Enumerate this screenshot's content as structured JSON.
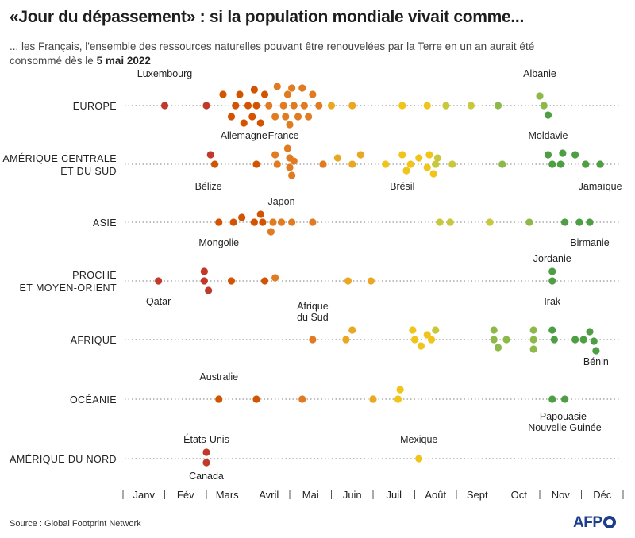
{
  "title": "«Jour du dépassement» : si la population mondiale vivait comme...",
  "subtitle_pre": "... les Français, l'ensemble des ressources naturelles pouvant être renouvelées par la Terre en un an aurait été consommé dès le ",
  "subtitle_date": "5 mai 2022",
  "source": "Source : Global Footprint Network",
  "logo_text": "AFP",
  "colors": {
    "scale": [
      "#c0392b",
      "#d35400",
      "#e07b22",
      "#eaa722",
      "#f0c419",
      "#c8c83a",
      "#8db94a",
      "#4e9e44"
    ],
    "dotline": "#999999",
    "label": "#222222"
  },
  "chart_data": {
    "type": "scatter",
    "x_axis": {
      "unit": "month",
      "range": [
        1,
        13
      ],
      "tick_labels": [
        "Janv",
        "Fév",
        "Mars",
        "Avril",
        "Mai",
        "Juin",
        "Juil",
        "Août",
        "Sept",
        "Oct",
        "Nov",
        "Déc"
      ]
    },
    "groups": [
      {
        "label_lines": [
          "EUROPE"
        ],
        "points": [
          {
            "x": 2.0,
            "dy": 0
          },
          {
            "x": 3.0,
            "dy": 0
          },
          {
            "x": 3.4,
            "dy": -14
          },
          {
            "x": 3.6,
            "dy": 14
          },
          {
            "x": 3.7,
            "dy": 0
          },
          {
            "x": 3.8,
            "dy": -14
          },
          {
            "x": 3.9,
            "dy": 22
          },
          {
            "x": 4.0,
            "dy": 0
          },
          {
            "x": 4.1,
            "dy": 14
          },
          {
            "x": 4.15,
            "dy": -20
          },
          {
            "x": 4.2,
            "dy": 0
          },
          {
            "x": 4.3,
            "dy": 22
          },
          {
            "x": 4.4,
            "dy": -14
          },
          {
            "x": 4.5,
            "dy": 0
          },
          {
            "x": 4.65,
            "dy": 14
          },
          {
            "x": 4.7,
            "dy": -24
          },
          {
            "x": 4.85,
            "dy": 0
          },
          {
            "x": 4.9,
            "dy": 14
          },
          {
            "x": 4.95,
            "dy": -14
          },
          {
            "x": 5.0,
            "dy": 24
          },
          {
            "x": 5.05,
            "dy": -22
          },
          {
            "x": 5.1,
            "dy": 0
          },
          {
            "x": 5.2,
            "dy": 14
          },
          {
            "x": 5.3,
            "dy": -22
          },
          {
            "x": 5.35,
            "dy": 0
          },
          {
            "x": 5.45,
            "dy": 14
          },
          {
            "x": 5.55,
            "dy": -14
          },
          {
            "x": 5.7,
            "dy": 0
          },
          {
            "x": 6.0,
            "dy": 0
          },
          {
            "x": 6.5,
            "dy": 0
          },
          {
            "x": 7.7,
            "dy": 0
          },
          {
            "x": 8.3,
            "dy": 0
          },
          {
            "x": 8.75,
            "dy": 0
          },
          {
            "x": 9.35,
            "dy": 0
          },
          {
            "x": 10.0,
            "dy": 0
          },
          {
            "x": 11.0,
            "dy": -12
          },
          {
            "x": 11.1,
            "dy": 0
          },
          {
            "x": 11.2,
            "dy": 12
          }
        ],
        "annotations": [
          {
            "text": "Luxembourg",
            "x": 2.0,
            "pos": "above"
          },
          {
            "text": "Allemagne",
            "x": 3.9,
            "pos": "below"
          },
          {
            "text": "France",
            "x": 4.85,
            "pos": "below"
          },
          {
            "text": "Albanie",
            "x": 11.0,
            "pos": "above"
          },
          {
            "text": "Moldavie",
            "x": 11.2,
            "pos": "below"
          }
        ]
      },
      {
        "label_lines": [
          "AMÉRIQUE CENTRALE",
          "ET DU SUD"
        ],
        "points": [
          {
            "x": 3.1,
            "dy": -12
          },
          {
            "x": 3.2,
            "dy": 0
          },
          {
            "x": 4.2,
            "dy": 0
          },
          {
            "x": 4.65,
            "dy": -12
          },
          {
            "x": 4.7,
            "dy": 0
          },
          {
            "x": 4.95,
            "dy": -20
          },
          {
            "x": 5.0,
            "dy": -8
          },
          {
            "x": 5.0,
            "dy": 4
          },
          {
            "x": 5.05,
            "dy": 14
          },
          {
            "x": 5.1,
            "dy": -4
          },
          {
            "x": 5.8,
            "dy": 0
          },
          {
            "x": 6.15,
            "dy": -8
          },
          {
            "x": 6.5,
            "dy": 0
          },
          {
            "x": 6.7,
            "dy": -12
          },
          {
            "x": 7.3,
            "dy": 0
          },
          {
            "x": 7.7,
            "dy": -12
          },
          {
            "x": 7.8,
            "dy": 8
          },
          {
            "x": 7.9,
            "dy": 0
          },
          {
            "x": 8.1,
            "dy": -8
          },
          {
            "x": 8.3,
            "dy": 4
          },
          {
            "x": 8.35,
            "dy": -12
          },
          {
            "x": 8.45,
            "dy": 12
          },
          {
            "x": 8.5,
            "dy": 0
          },
          {
            "x": 8.55,
            "dy": -8
          },
          {
            "x": 8.9,
            "dy": 0
          },
          {
            "x": 10.1,
            "dy": 0
          },
          {
            "x": 11.2,
            "dy": -12
          },
          {
            "x": 11.3,
            "dy": 0
          },
          {
            "x": 11.5,
            "dy": 0
          },
          {
            "x": 11.55,
            "dy": -14
          },
          {
            "x": 11.85,
            "dy": -12
          },
          {
            "x": 12.1,
            "dy": 0
          },
          {
            "x": 12.45,
            "dy": 0
          }
        ],
        "annotations": [
          {
            "text": "Bélize",
            "x": 3.05,
            "pos": "below"
          },
          {
            "text": "Brésil",
            "x": 7.7,
            "pos": "below"
          },
          {
            "text": "Jamaïque",
            "x": 12.45,
            "pos": "below"
          }
        ]
      },
      {
        "label_lines": [
          "ASIE"
        ],
        "points": [
          {
            "x": 3.3,
            "dy": 0
          },
          {
            "x": 3.65,
            "dy": 0
          },
          {
            "x": 3.85,
            "dy": -6
          },
          {
            "x": 4.15,
            "dy": 0
          },
          {
            "x": 4.3,
            "dy": -10
          },
          {
            "x": 4.35,
            "dy": 0
          },
          {
            "x": 4.55,
            "dy": 12
          },
          {
            "x": 4.6,
            "dy": 0
          },
          {
            "x": 4.8,
            "dy": 0
          },
          {
            "x": 5.05,
            "dy": 0
          },
          {
            "x": 5.55,
            "dy": 0
          },
          {
            "x": 8.6,
            "dy": 0
          },
          {
            "x": 8.85,
            "dy": 0
          },
          {
            "x": 9.8,
            "dy": 0
          },
          {
            "x": 10.75,
            "dy": 0
          },
          {
            "x": 11.6,
            "dy": 0
          },
          {
            "x": 11.95,
            "dy": 0
          },
          {
            "x": 12.2,
            "dy": 0
          }
        ],
        "annotations": [
          {
            "text": "Mongolie",
            "x": 3.3,
            "pos": "below"
          },
          {
            "text": "Japon",
            "x": 4.8,
            "pos": "above"
          },
          {
            "text": "Birmanie",
            "x": 12.2,
            "pos": "below"
          }
        ]
      },
      {
        "label_lines": [
          "PROCHE",
          "ET MOYEN-ORIENT"
        ],
        "points": [
          {
            "x": 1.85,
            "dy": 0
          },
          {
            "x": 2.95,
            "dy": -12
          },
          {
            "x": 2.95,
            "dy": 0
          },
          {
            "x": 3.05,
            "dy": 12
          },
          {
            "x": 3.6,
            "dy": 0
          },
          {
            "x": 4.4,
            "dy": 0
          },
          {
            "x": 4.65,
            "dy": -4
          },
          {
            "x": 6.4,
            "dy": 0
          },
          {
            "x": 6.95,
            "dy": 0
          },
          {
            "x": 11.3,
            "dy": -12
          },
          {
            "x": 11.3,
            "dy": 0
          }
        ],
        "annotations": [
          {
            "text": "Qatar",
            "x": 1.85,
            "pos": "below"
          },
          {
            "text": "Jordanie",
            "x": 11.3,
            "pos": "above"
          },
          {
            "text": "Irak",
            "x": 11.3,
            "pos": "below"
          }
        ]
      },
      {
        "label_lines": [
          "AFRIQUE"
        ],
        "points": [
          {
            "x": 5.55,
            "dy": 0
          },
          {
            "x": 6.35,
            "dy": 0
          },
          {
            "x": 6.5,
            "dy": -12
          },
          {
            "x": 7.95,
            "dy": -12
          },
          {
            "x": 8.0,
            "dy": 0
          },
          {
            "x": 8.15,
            "dy": 8
          },
          {
            "x": 8.3,
            "dy": -6
          },
          {
            "x": 8.4,
            "dy": 0
          },
          {
            "x": 8.5,
            "dy": -12
          },
          {
            "x": 9.9,
            "dy": -12
          },
          {
            "x": 9.9,
            "dy": 0
          },
          {
            "x": 10.0,
            "dy": 10
          },
          {
            "x": 10.2,
            "dy": 0
          },
          {
            "x": 10.85,
            "dy": -12
          },
          {
            "x": 10.85,
            "dy": 0
          },
          {
            "x": 10.85,
            "dy": 12
          },
          {
            "x": 11.3,
            "dy": -12
          },
          {
            "x": 11.35,
            "dy": 0
          },
          {
            "x": 11.85,
            "dy": 0
          },
          {
            "x": 12.05,
            "dy": 0
          },
          {
            "x": 12.2,
            "dy": -10
          },
          {
            "x": 12.3,
            "dy": 2
          },
          {
            "x": 12.35,
            "dy": 14
          }
        ],
        "annotations": [
          {
            "text": "Afrique",
            "x": 5.55,
            "pos": "above2"
          },
          {
            "text": "du Sud",
            "x": 5.55,
            "pos": "above"
          },
          {
            "text": "Bénin",
            "x": 12.35,
            "pos": "below"
          }
        ]
      },
      {
        "label_lines": [
          "OCÉANIE"
        ],
        "points": [
          {
            "x": 3.3,
            "dy": 0
          },
          {
            "x": 4.2,
            "dy": 0
          },
          {
            "x": 5.3,
            "dy": 0
          },
          {
            "x": 7.0,
            "dy": 0
          },
          {
            "x": 7.6,
            "dy": 0
          },
          {
            "x": 7.65,
            "dy": -12
          },
          {
            "x": 11.3,
            "dy": 0
          },
          {
            "x": 11.6,
            "dy": 0
          }
        ],
        "annotations": [
          {
            "text": "Australie",
            "x": 3.3,
            "pos": "above"
          },
          {
            "text": "Papouasie-",
            "x": 11.6,
            "pos": "below"
          },
          {
            "text": "Nouvelle Guinée",
            "x": 11.6,
            "pos": "below2"
          }
        ]
      },
      {
        "label_lines": [
          "AMÉRIQUE DU NORD"
        ],
        "points": [
          {
            "x": 3.0,
            "dy": -8
          },
          {
            "x": 3.0,
            "dy": 5
          },
          {
            "x": 8.1,
            "dy": 0
          }
        ],
        "annotations": [
          {
            "text": "États-Unis",
            "x": 3.0,
            "pos": "above"
          },
          {
            "text": "Canada",
            "x": 3.0,
            "pos": "below"
          },
          {
            "text": "Mexique",
            "x": 8.1,
            "pos": "above"
          }
        ]
      }
    ]
  }
}
